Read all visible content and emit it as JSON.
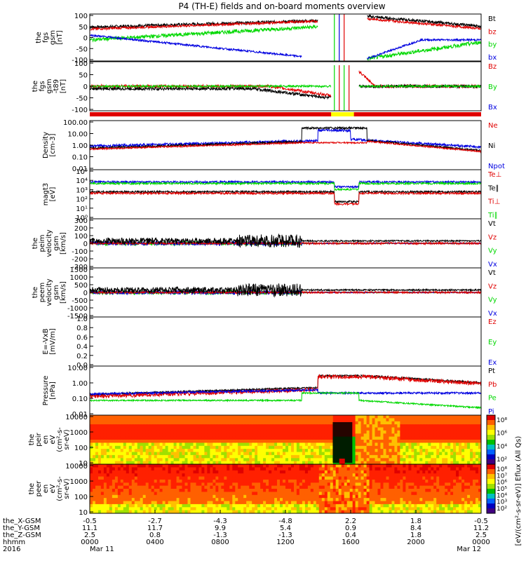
{
  "title": "P4 (TH-E) fields and on-board moments overview",
  "colors": {
    "black": "#000000",
    "red": "#e00000",
    "green": "#00d800",
    "blue": "#0000e0",
    "yellow": "#ffff00",
    "frame": "#000000"
  },
  "chart_data": {
    "type": "line",
    "x_axis": {
      "rows": [
        {
          "label": "the_X-GSM",
          "values": [
            "-0.5",
            "-2.7",
            "-4.3",
            "-4.8",
            "2.2",
            "1.8",
            "-0.5"
          ]
        },
        {
          "label": "the_Y-GSM",
          "values": [
            "11.1",
            "11.7",
            "9.9",
            "5.4",
            "0.9",
            "8.4",
            "11.2"
          ]
        },
        {
          "label": "the_Z-GSM",
          "values": [
            "2.5",
            "0.8",
            "-1.3",
            "-1.3",
            "0.4",
            "1.8",
            "2.5"
          ]
        },
        {
          "label": "hhmm",
          "values": [
            "0000",
            "0400",
            "0800",
            "1200",
            "1600",
            "2000",
            "0000"
          ]
        },
        {
          "label": "2016",
          "values": [
            "Mar 11",
            "",
            "",
            "",
            "",
            "",
            "Mar 12"
          ]
        }
      ],
      "hours": [
        0,
        4,
        8,
        12,
        16,
        20,
        24
      ]
    },
    "panels": [
      {
        "id": "fgs-gsm",
        "ylabel": [
          "the",
          "fgs",
          "gsm",
          "[nT]"
        ],
        "yticks": [
          "100",
          "50",
          "0",
          "-50",
          "-100"
        ],
        "ylim": [
          -100,
          100
        ],
        "legend": [
          {
            "name": "Bt",
            "color": "black"
          },
          {
            "name": "bz",
            "color": "red"
          },
          {
            "name": "by",
            "color": "green"
          },
          {
            "name": "bx",
            "color": "blue"
          }
        ]
      },
      {
        "id": "fgs-gsm-t89",
        "ylabel": [
          "the",
          "fgs",
          "gsm",
          "-t89",
          "[nT]"
        ],
        "yticks": [
          "100",
          "50",
          "0",
          "-50",
          "-100"
        ],
        "ylim": [
          -125,
          125
        ],
        "legend": [
          {
            "name": "Bz",
            "color": "red"
          },
          {
            "name": "By",
            "color": "green"
          },
          {
            "name": "Bx",
            "color": "blue"
          }
        ]
      },
      {
        "id": "density",
        "ylabel": [
          "Density",
          "[cm-3]"
        ],
        "yticks": [
          "100.00",
          "10.00",
          "1.00",
          "0.10",
          "0.01"
        ],
        "scale": "log",
        "legend": [
          {
            "name": "Ne",
            "color": "red"
          },
          {
            "name": "Ni",
            "color": "black"
          },
          {
            "name": "Npot",
            "color": "blue"
          }
        ]
      },
      {
        "id": "temperature",
        "ylabel": [
          "magt3",
          "[eV]"
        ],
        "yticks": [
          "10⁵",
          "10⁴",
          "10³",
          "10²",
          "10¹",
          "10⁰"
        ],
        "scale": "log",
        "legend": [
          {
            "name": "Te⊥",
            "color": "red"
          },
          {
            "name": "Te∥",
            "color": "black"
          },
          {
            "name": "Ti⊥",
            "color": "red"
          },
          {
            "name": "Ti∥",
            "color": "green"
          }
        ]
      },
      {
        "id": "peim-velocity",
        "ylabel": [
          "the",
          "peim",
          "velocity",
          "gsm",
          "[km/s]"
        ],
        "yticks": [
          "300",
          "200",
          "100",
          "0",
          "-100",
          "-200",
          "-300"
        ],
        "ylim": [
          -300,
          300
        ],
        "legend": [
          {
            "name": "Vt",
            "color": "black"
          },
          {
            "name": "Vz",
            "color": "red"
          },
          {
            "name": "Vy",
            "color": "green"
          },
          {
            "name": "Vx",
            "color": "blue"
          }
        ]
      },
      {
        "id": "peem-velocity",
        "ylabel": [
          "the",
          "peem",
          "velocity",
          "gsm",
          "[km/s]"
        ],
        "yticks": [
          "1500",
          "1000",
          "500",
          "0",
          "-500",
          "-1000",
          "-1500"
        ],
        "ylim": [
          -1500,
          1500
        ],
        "legend": [
          {
            "name": "Vt",
            "color": "black"
          },
          {
            "name": "Vz",
            "color": "red"
          },
          {
            "name": "Vy",
            "color": "green"
          },
          {
            "name": "Vx",
            "color": "blue"
          }
        ]
      },
      {
        "id": "efield",
        "ylabel": [
          "E=-VxB",
          "[mV/m]"
        ],
        "yticks": [
          "1.0",
          "0.8",
          "0.6",
          "0.4",
          "0.2",
          "0.0"
        ],
        "ylim": [
          0,
          1
        ],
        "legend": [
          {
            "name": "Ez",
            "color": "red"
          },
          {
            "name": "Ey",
            "color": "green"
          },
          {
            "name": "Ex",
            "color": "blue"
          }
        ]
      },
      {
        "id": "pressure",
        "ylabel": [
          "Pressure",
          "[nPa]"
        ],
        "yticks": [
          "10.00",
          "1.00",
          "0.10",
          "0.01"
        ],
        "scale": "log",
        "legend": [
          {
            "name": "Pt",
            "color": "black"
          },
          {
            "name": "Pb",
            "color": "red"
          },
          {
            "name": "Pe",
            "color": "green"
          },
          {
            "name": "Pi",
            "color": "blue"
          }
        ]
      },
      {
        "id": "peir-spec",
        "ylabel": [
          "the",
          "peir",
          "en",
          "eV",
          "(cm²-s-",
          "sr-eV)"
        ],
        "yticks": [
          "10000",
          "1000",
          "100",
          "10"
        ],
        "scale": "log",
        "type": "spectrogram",
        "colorbar": [
          "10⁸",
          "10⁶",
          "10⁴",
          "10²"
        ]
      },
      {
        "id": "peer-spec",
        "ylabel": [
          "the",
          "peer",
          "en",
          "eV",
          "(cm²-s-",
          "sr-eV)"
        ],
        "yticks": [
          "10000",
          "1000",
          "100",
          "10"
        ],
        "scale": "log",
        "type": "spectrogram",
        "colorbar": [
          "10⁸",
          "10⁷",
          "10⁶",
          "10⁵",
          "10⁴",
          "10³",
          "10²"
        ]
      }
    ],
    "colorbar_label": "[eV/(cm²-s-sr-eV)] Eflux (All Qs)",
    "orbit_bar": {
      "colors": [
        "red",
        "yellow",
        "red"
      ],
      "yellow_hours": [
        14.8,
        16.2
      ]
    }
  }
}
